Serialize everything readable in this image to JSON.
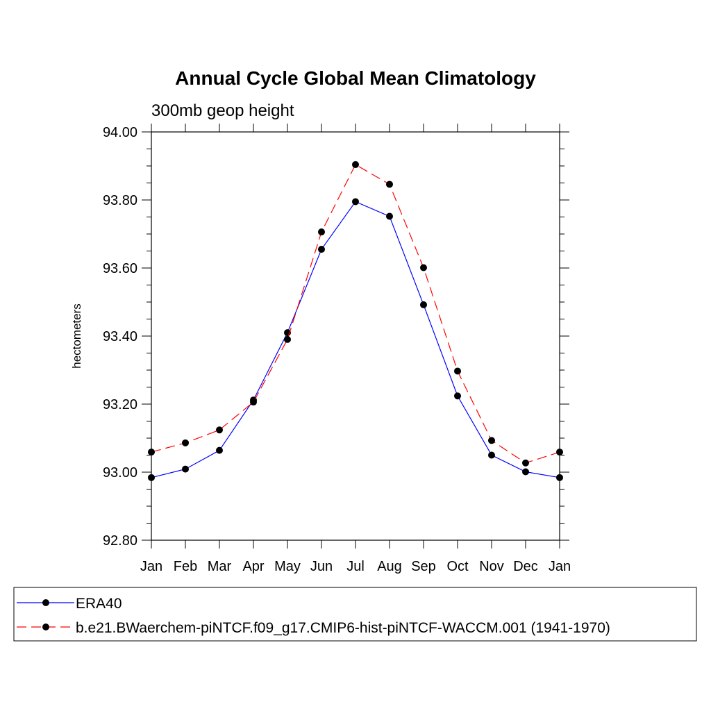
{
  "chart_data": {
    "type": "line",
    "title": "Annual Cycle Global Mean Climatology",
    "subtitle": "300mb geop height",
    "ylabel": "hectometers",
    "xlabel": "",
    "categories": [
      "Jan",
      "Feb",
      "Mar",
      "Apr",
      "May",
      "Jun",
      "Jul",
      "Aug",
      "Sep",
      "Oct",
      "Nov",
      "Dec",
      "Jan"
    ],
    "ylim": [
      92.8,
      94.0
    ],
    "yticks": [
      "92.80",
      "93.00",
      "93.20",
      "93.40",
      "93.60",
      "93.80",
      "94.00"
    ],
    "series": [
      {
        "name": "ERA40",
        "color": "#0000ff",
        "dash": "solid",
        "marker": "filled-circle",
        "values": [
          92.984,
          93.009,
          93.064,
          93.212,
          93.41,
          93.655,
          93.795,
          93.752,
          93.492,
          93.224,
          93.05,
          93.001,
          92.984
        ]
      },
      {
        "name": "b.e21.BWaerchem-piNTCF.f09_g17.CMIP6-hist-piNTCF-WACCM.001 (1941-1970)",
        "color": "#ff0000",
        "dash": "dashed",
        "marker": "filled-circle",
        "values": [
          93.059,
          93.086,
          93.124,
          93.206,
          93.39,
          93.706,
          93.904,
          93.846,
          93.601,
          93.297,
          93.093,
          93.027,
          93.059
        ]
      }
    ],
    "legend_position": "bottom"
  }
}
